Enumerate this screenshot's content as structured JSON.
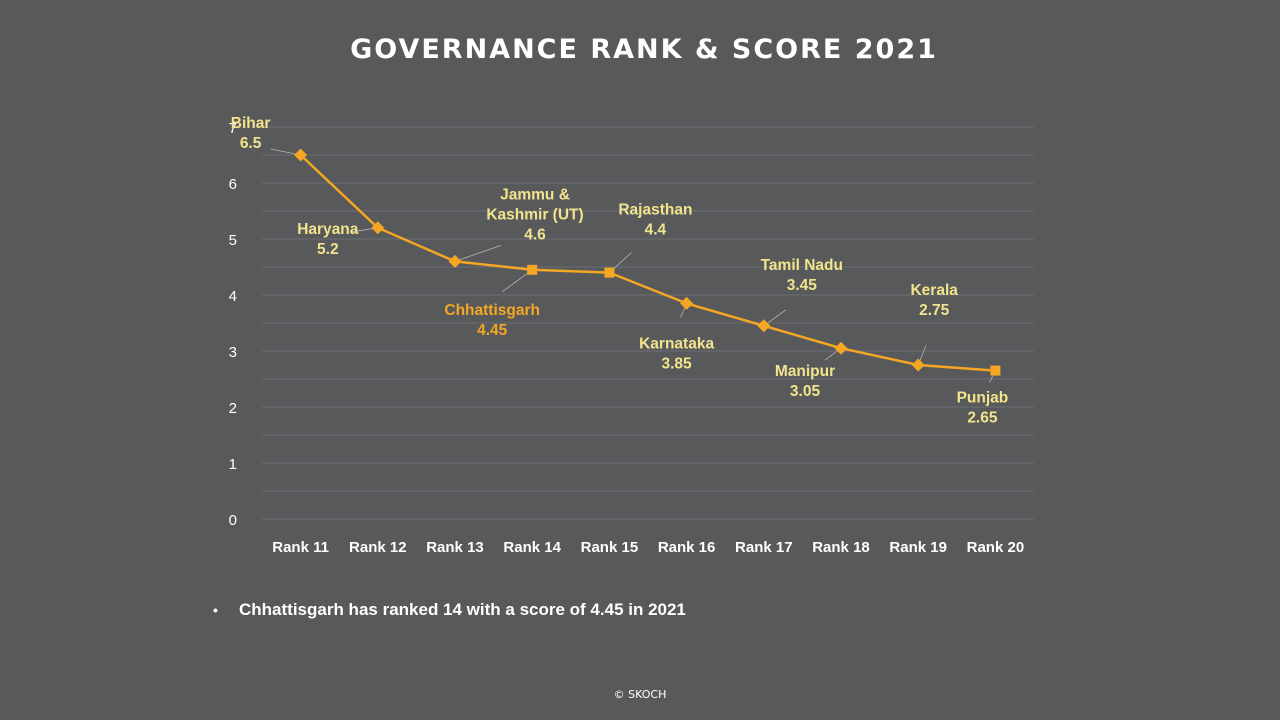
{
  "page": {
    "title": "GOVERNANCE RANK & SCORE 2021",
    "bullet": "Chhattisgarh has ranked 14 with a score of 4.45 in 2021",
    "bullet_symbol": "•",
    "footer": "© SKOCH"
  },
  "colors": {
    "background": "#58595b",
    "line": "#f5a623",
    "label": "#f2e48c",
    "highlight_label": "#f5a623",
    "grid": "#6c6d70",
    "axis_text": "#ffffff"
  },
  "chart_data": {
    "type": "line",
    "title": "GOVERNANCE RANK & SCORE 2021",
    "xlabel": "",
    "ylabel": "",
    "ylim": [
      0,
      7
    ],
    "y_ticks": [
      0,
      1,
      2,
      3,
      4,
      5,
      6,
      7
    ],
    "grid": true,
    "categories": [
      "Rank 11",
      "Rank 12",
      "Rank 13",
      "Rank 14",
      "Rank 15",
      "Rank 16",
      "Rank 17",
      "Rank 18",
      "Rank 19",
      "Rank 20"
    ],
    "series": [
      {
        "values": [
          6.5,
          5.2,
          4.6,
          4.45,
          4.4,
          3.85,
          3.45,
          3.05,
          2.75,
          2.65
        ],
        "markers": [
          "diamond",
          "diamond",
          "diamond",
          "square",
          "square",
          "diamond",
          "diamond",
          "diamond",
          "diamond",
          "square"
        ]
      }
    ],
    "point_labels": [
      {
        "lines": [
          "Bihar",
          "6.5"
        ],
        "highlight": false
      },
      {
        "lines": [
          "Haryana",
          "5.2"
        ],
        "highlight": false
      },
      {
        "lines": [
          "Jammu &",
          "Kashmir (UT)",
          "4.6"
        ],
        "highlight": false
      },
      {
        "lines": [
          "Chhattisgarh",
          "4.45"
        ],
        "highlight": true
      },
      {
        "lines": [
          "Rajasthan",
          "4.4"
        ],
        "highlight": false
      },
      {
        "lines": [
          "Karnataka",
          "3.85"
        ],
        "highlight": false
      },
      {
        "lines": [
          "Tamil Nadu",
          "3.45"
        ],
        "highlight": false
      },
      {
        "lines": [
          "Manipur",
          "3.05"
        ],
        "highlight": false
      },
      {
        "lines": [
          "Kerala",
          "2.75"
        ],
        "highlight": false
      },
      {
        "lines": [
          "Punjab",
          "2.65"
        ],
        "highlight": false
      }
    ]
  }
}
